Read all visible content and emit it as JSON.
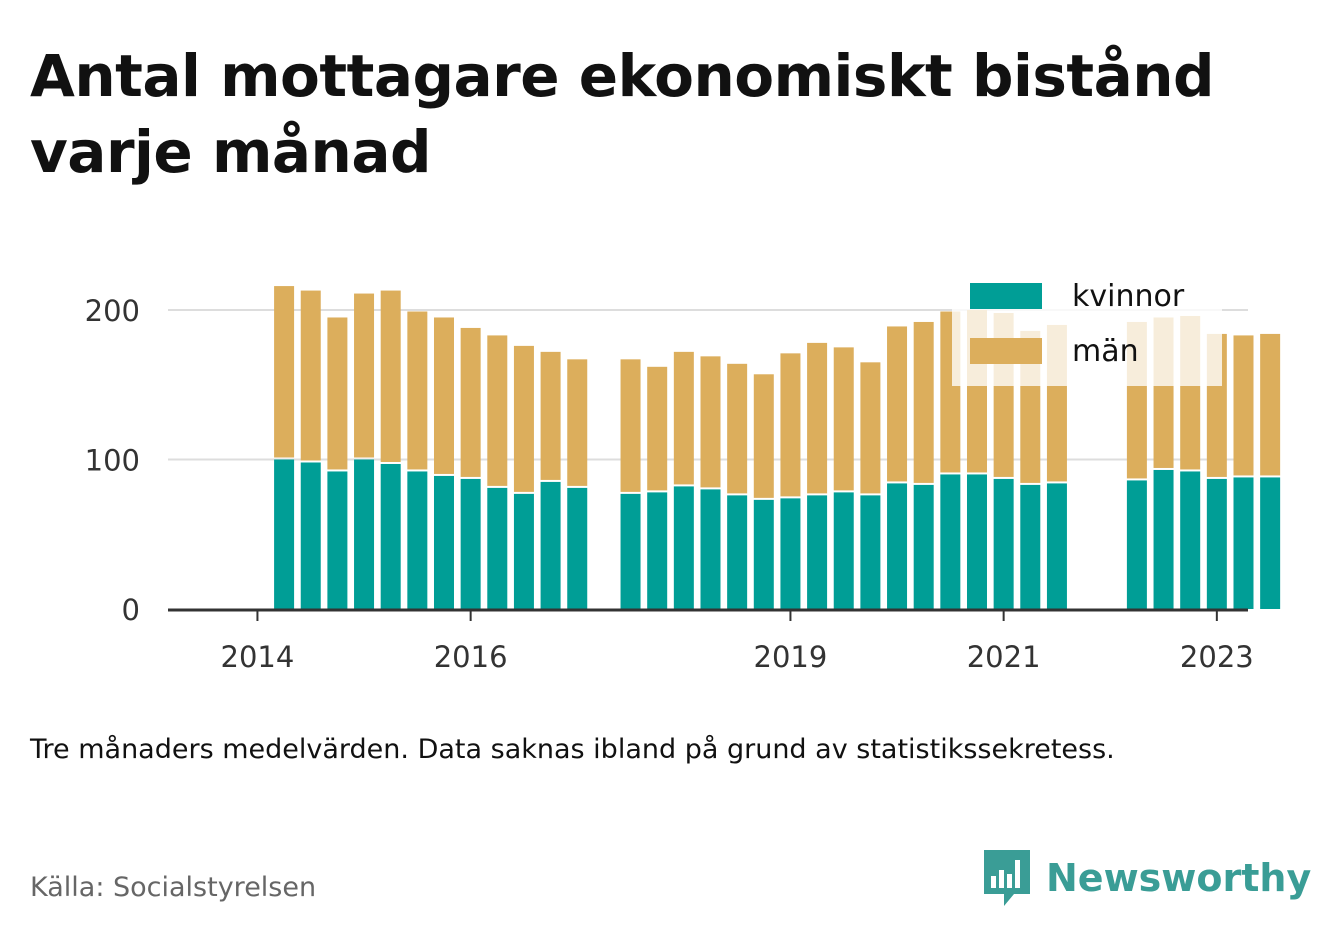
{
  "title": "Antal mottagare ekonomiskt bistånd varje månad",
  "note": "Tre månaders medelvärden. Data saknas ibland på grund av statistikssekretess.",
  "source": "Källa: Socialstyrelsen",
  "brand": {
    "name": "Newsworthy",
    "icon": "bar-chart-speech-bubble-icon",
    "color": "#3a9d96"
  },
  "chart_data": {
    "type": "bar",
    "stacked": true,
    "title": "Antal mottagare ekonomiskt bistånd varje månad",
    "xlabel": "",
    "ylabel": "",
    "ylim": [
      0,
      225
    ],
    "y_ticks": [
      0,
      100,
      200
    ],
    "x_ticks": [
      "2014",
      "2016",
      "2019",
      "2021",
      "2023"
    ],
    "x_tick_positions": [
      2014.0,
      2016.0,
      2019.0,
      2021.0,
      2023.0
    ],
    "xlim": [
      2013.5,
      2023.7
    ],
    "grid": "horizontal",
    "legend_position": "top-right",
    "x": [
      2014.25,
      2014.5,
      2014.75,
      2015.0,
      2015.25,
      2015.5,
      2015.75,
      2016.0,
      2016.25,
      2016.5,
      2016.75,
      2017.0,
      2017.5,
      2017.75,
      2018.0,
      2018.25,
      2018.5,
      2018.75,
      2019.0,
      2019.25,
      2019.5,
      2019.75,
      2020.0,
      2020.25,
      2020.5,
      2020.75,
      2021.0,
      2021.25,
      2021.5,
      2022.25,
      2022.5,
      2022.75,
      2023.0,
      2023.25,
      2023.5
    ],
    "series": [
      {
        "name": "kvinnor",
        "color": "#009e96",
        "values": [
          100,
          98,
          92,
          100,
          97,
          92,
          89,
          87,
          81,
          77,
          85,
          81,
          77,
          78,
          82,
          80,
          76,
          73,
          74,
          76,
          78,
          76,
          84,
          83,
          90,
          90,
          87,
          83,
          84,
          86,
          93,
          92,
          87,
          88,
          88
        ]
      },
      {
        "name": "män",
        "color": "#dcae5c",
        "values": [
          116,
          115,
          103,
          111,
          116,
          107,
          106,
          101,
          102,
          99,
          87,
          86,
          90,
          84,
          90,
          89,
          88,
          84,
          97,
          102,
          97,
          89,
          105,
          109,
          109,
          110,
          111,
          103,
          106,
          106,
          102,
          104,
          97,
          95,
          96
        ]
      }
    ]
  }
}
